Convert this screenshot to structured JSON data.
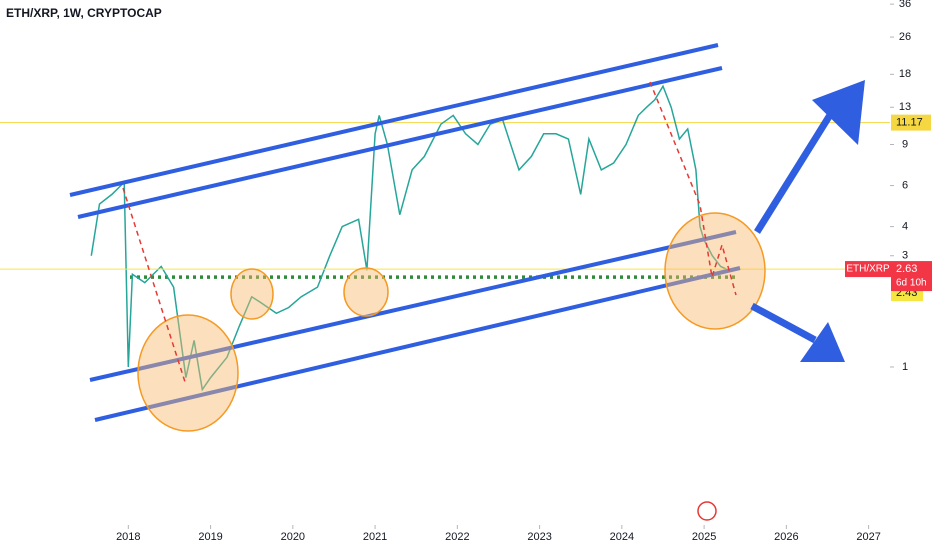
{
  "chart_data": {
    "type": "line",
    "title": "ETH/XRP, 1W, CRYPTOCAP",
    "log_y": true,
    "xlim": [
      2016.44,
      2027.26
    ],
    "ylim": [
      0.21,
      37.5
    ],
    "xticks": [
      2018,
      2019,
      2020,
      2021,
      2022,
      2023,
      2024,
      2025,
      2026,
      2027
    ],
    "yticks": [
      1,
      3,
      4,
      6,
      9,
      13,
      18,
      26,
      36
    ],
    "x": [
      2017.55,
      2017.65,
      2017.8,
      2017.95,
      2018.0,
      2018.05,
      2018.2,
      2018.4,
      2018.55,
      2018.7,
      2018.8,
      2018.9,
      2019.0,
      2019.2,
      2019.35,
      2019.5,
      2019.6,
      2019.8,
      2019.95,
      2020.1,
      2020.3,
      2020.45,
      2020.6,
      2020.8,
      2020.9,
      2021.0,
      2021.05,
      2021.15,
      2021.3,
      2021.45,
      2021.6,
      2021.8,
      2021.95,
      2022.1,
      2022.25,
      2022.4,
      2022.55,
      2022.75,
      2022.9,
      2023.05,
      2023.2,
      2023.35,
      2023.5,
      2023.6,
      2023.75,
      2023.9,
      2024.05,
      2024.2,
      2024.3,
      2024.4,
      2024.5,
      2024.6,
      2024.7,
      2024.8,
      2024.9,
      2024.95,
      2025.0,
      2025.1,
      2025.2,
      2025.27
    ],
    "series": [
      {
        "name": "ETH/XRP",
        "color": "#26a69a",
        "values": [
          3.0,
          5,
          5.5,
          6.2,
          1.0,
          2.5,
          2.3,
          2.7,
          2.2,
          0.9,
          1.3,
          0.8,
          0.9,
          1.1,
          1.5,
          2.0,
          1.9,
          1.7,
          1.8,
          2.0,
          2.2,
          3.0,
          4.0,
          4.3,
          2.6,
          10,
          12,
          9,
          4.5,
          7,
          8,
          11,
          12,
          10,
          9,
          11,
          11.5,
          7,
          8,
          10,
          10,
          9.5,
          5.5,
          9.5,
          7,
          7.5,
          9,
          12,
          13,
          14,
          16,
          13,
          9.5,
          10.5,
          7,
          4,
          3.5,
          3.0,
          2.7,
          2.63
        ]
      }
    ],
    "last_price": 2.63,
    "countdown": "6d 10h",
    "levels": [
      {
        "value": 11.17,
        "color": "#f5d742"
      },
      {
        "value": 2.43,
        "color": "#f5e642"
      }
    ]
  }
}
